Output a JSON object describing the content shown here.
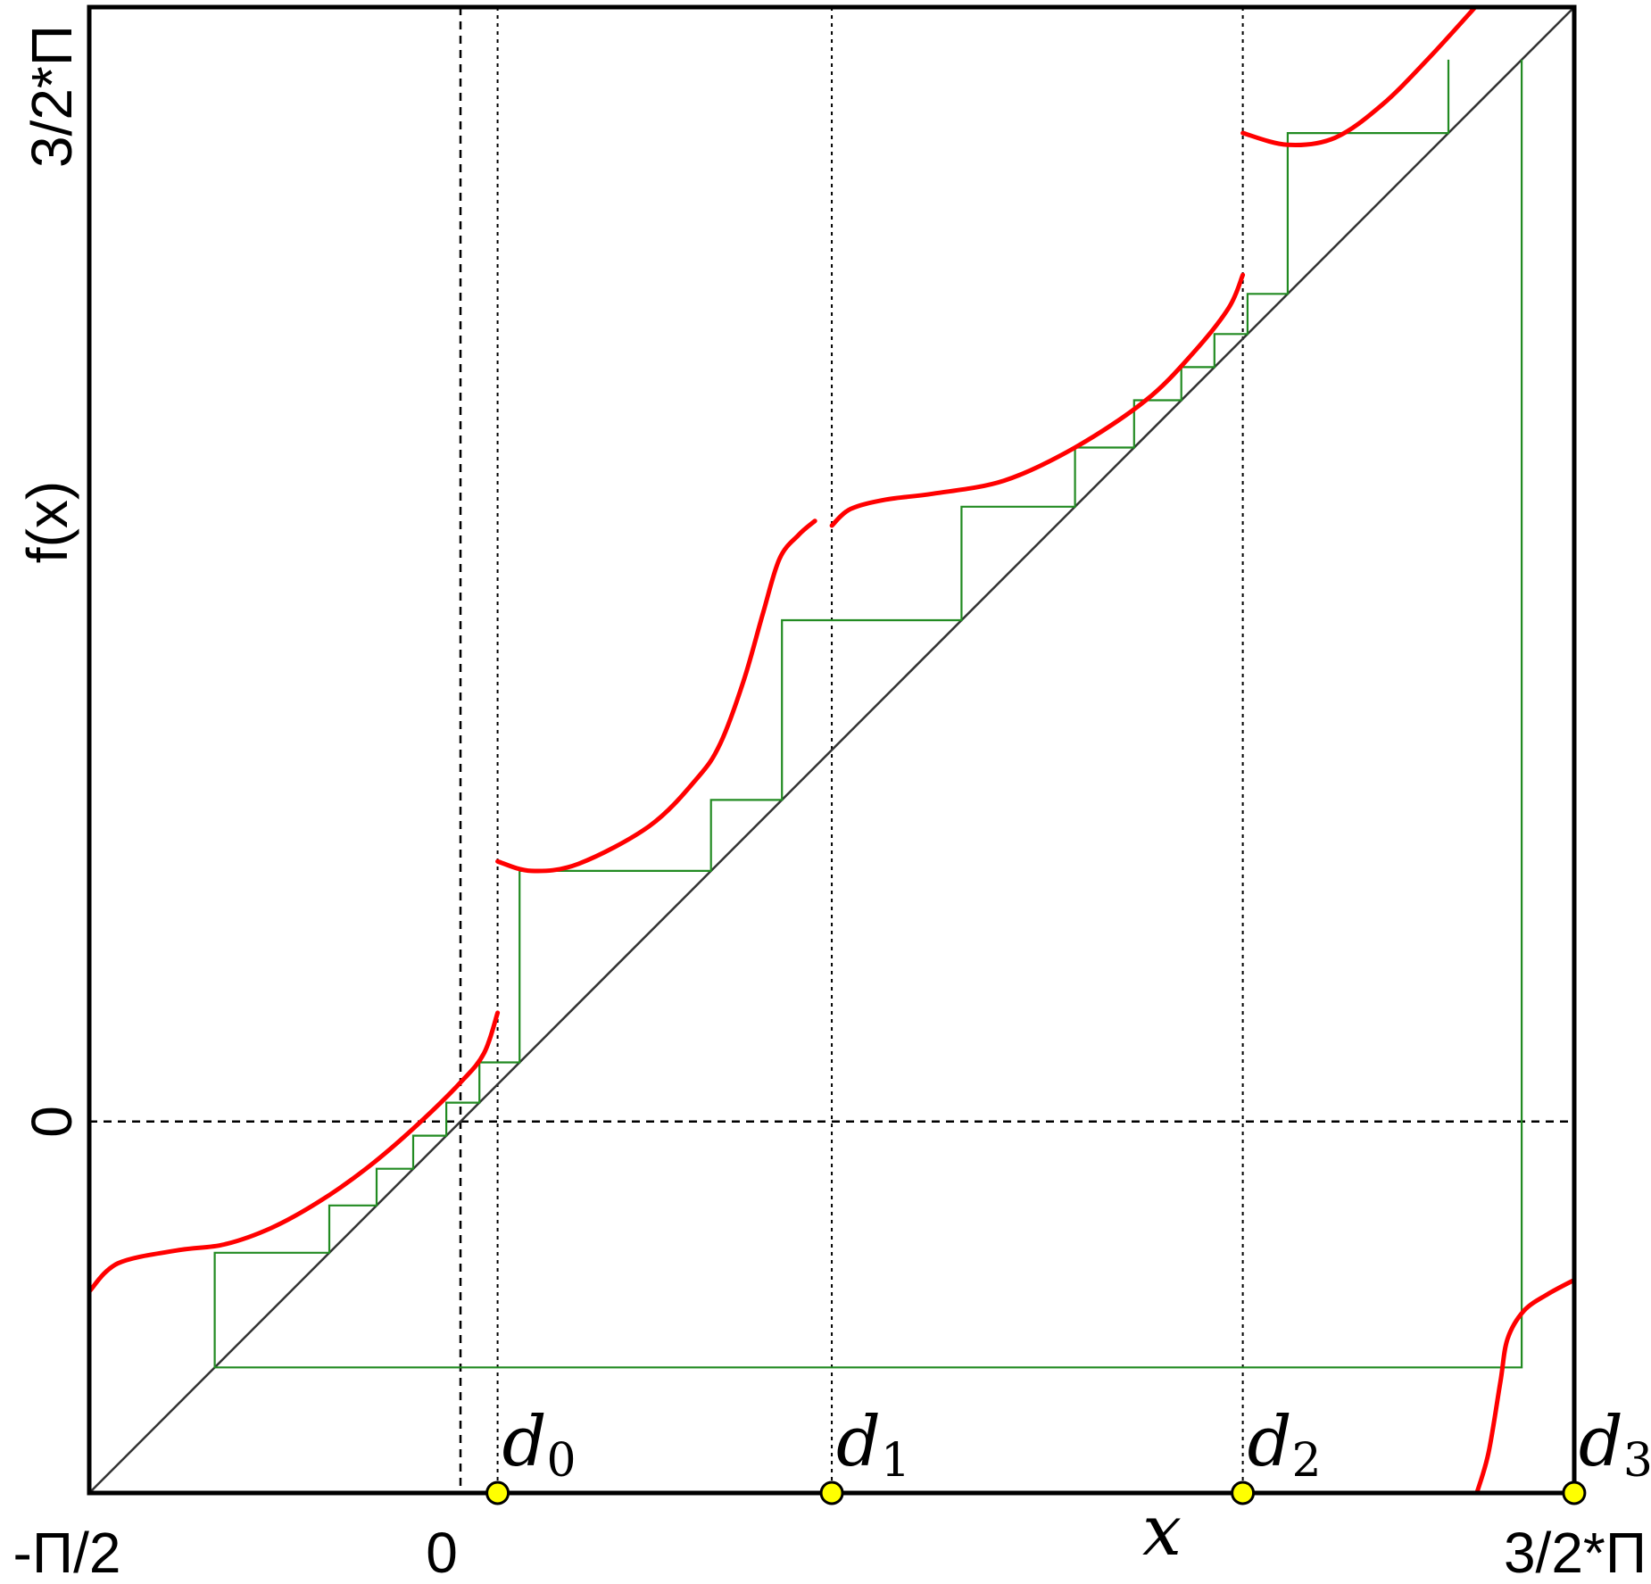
{
  "chart_data": {
    "type": "line",
    "title": "",
    "xlabel": "x",
    "ylabel": "f(x)",
    "xlim": [
      -1.5708,
      4.7124
    ],
    "ylim": [
      -1.5708,
      4.7124
    ],
    "grid": false,
    "x_ticks": [
      {
        "value": -1.5708,
        "label": "-Π/2"
      },
      {
        "value": 0,
        "label": "0"
      },
      {
        "value": 4.7124,
        "label": "3/2*Π"
      }
    ],
    "y_ticks": [
      {
        "value": 0,
        "label": "0"
      },
      {
        "value": 4.7124,
        "label": "3/2*Π"
      }
    ],
    "colors": {
      "map": "#ff0000",
      "cobweb": "#228b22",
      "diagonal": "#333333",
      "marker": "#ffff00",
      "frame": "#000000"
    },
    "reference_lines": {
      "vertical_dashed": [
        0
      ],
      "vertical_dotted": [
        0.157,
        1.571,
        3.31,
        4.712
      ],
      "horizontal_dashed": [
        0
      ]
    },
    "discontinuities": [
      {
        "name": "d",
        "sub": "0",
        "x": 0.157
      },
      {
        "name": "d",
        "sub": "1",
        "x": 1.571
      },
      {
        "name": "d",
        "sub": "2",
        "x": 3.31
      },
      {
        "name": "d",
        "sub": "3",
        "x": 4.712
      }
    ],
    "series": [
      {
        "role": "map",
        "branches": [
          [
            [
              -1.571,
              -0.719
            ],
            [
              -1.45,
              -0.6
            ],
            [
              -1.2,
              -0.545
            ],
            [
              -1.0,
              -0.52
            ],
            [
              -0.8,
              -0.45
            ],
            [
              -0.6,
              -0.34
            ],
            [
              -0.4,
              -0.2
            ],
            [
              -0.2,
              -0.03
            ],
            [
              0.0,
              0.165
            ],
            [
              0.1,
              0.29
            ],
            [
              0.157,
              0.46
            ]
          ],
          [
            [
              0.157,
              1.1
            ],
            [
              0.3,
              1.06
            ],
            [
              0.5,
              1.09
            ],
            [
              0.8,
              1.25
            ],
            [
              1.0,
              1.45
            ],
            [
              1.1,
              1.6
            ],
            [
              1.2,
              1.87
            ],
            [
              1.28,
              2.15
            ],
            [
              1.35,
              2.38
            ],
            [
              1.43,
              2.48
            ],
            [
              1.5,
              2.54
            ]
          ],
          [
            [
              1.571,
              2.52
            ],
            [
              1.65,
              2.59
            ],
            [
              1.8,
              2.63
            ],
            [
              2.0,
              2.655
            ],
            [
              2.3,
              2.71
            ],
            [
              2.6,
              2.85
            ],
            [
              2.9,
              3.05
            ],
            [
              3.1,
              3.25
            ],
            [
              3.25,
              3.44
            ],
            [
              3.31,
              3.58
            ]
          ],
          [
            [
              3.31,
              4.18
            ],
            [
              3.5,
              4.13
            ],
            [
              3.7,
              4.16
            ],
            [
              3.9,
              4.3
            ],
            [
              4.1,
              4.5
            ],
            [
              4.3,
              4.72
            ]
          ],
          [
            [
              4.3,
              -1.571
            ],
            [
              4.35,
              -1.4
            ],
            [
              4.4,
              -1.1
            ],
            [
              4.43,
              -0.92
            ],
            [
              4.5,
              -0.8
            ],
            [
              4.6,
              -0.73
            ],
            [
              4.712,
              -0.67
            ]
          ]
        ]
      },
      {
        "role": "cobweb",
        "points": [
          [
            4.49,
            4.49
          ],
          [
            4.49,
            -1.04
          ],
          [
            -1.04,
            -1.04
          ],
          [
            -1.04,
            -0.555
          ],
          [
            -0.555,
            -0.555
          ],
          [
            -0.555,
            -0.355
          ],
          [
            -0.355,
            -0.355
          ],
          [
            -0.355,
            -0.2
          ],
          [
            -0.2,
            -0.2
          ],
          [
            -0.2,
            -0.06
          ],
          [
            -0.06,
            -0.06
          ],
          [
            -0.06,
            0.08
          ],
          [
            0.08,
            0.08
          ],
          [
            0.08,
            0.25
          ],
          [
            0.25,
            0.25
          ],
          [
            0.25,
            1.06
          ],
          [
            1.06,
            1.06
          ],
          [
            1.06,
            1.36
          ],
          [
            1.36,
            1.36
          ],
          [
            1.36,
            2.12
          ],
          [
            2.12,
            2.12
          ],
          [
            2.12,
            2.6
          ],
          [
            2.6,
            2.6
          ],
          [
            2.6,
            2.85
          ],
          [
            2.85,
            2.85
          ],
          [
            2.85,
            3.05
          ],
          [
            3.05,
            3.05
          ],
          [
            3.05,
            3.19
          ],
          [
            3.19,
            3.19
          ],
          [
            3.19,
            3.33
          ],
          [
            3.33,
            3.33
          ],
          [
            3.33,
            3.5
          ],
          [
            3.5,
            3.5
          ],
          [
            3.5,
            4.18
          ],
          [
            4.18,
            4.18
          ],
          [
            4.18,
            4.49
          ]
        ]
      }
    ]
  }
}
